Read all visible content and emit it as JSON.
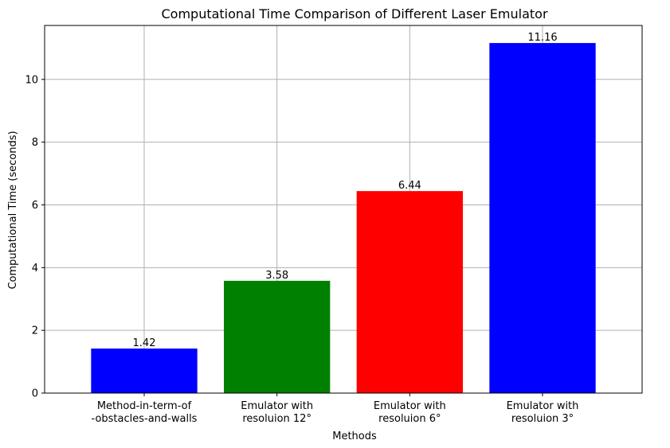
{
  "chart_data": {
    "type": "bar",
    "title": "Computational Time Comparison of Different Laser Emulator",
    "xlabel": "Methods",
    "ylabel": "Computational Time (seconds)",
    "categories": [
      [
        "Method-in-term-of",
        "-obstacles-and-walls"
      ],
      [
        "Emulator with",
        "resoluion 12°"
      ],
      [
        "Emulator with",
        "resoluion 6°"
      ],
      [
        "Emulator with",
        "resoluion 3°"
      ]
    ],
    "values": [
      1.42,
      3.58,
      6.44,
      11.16
    ],
    "value_labels": [
      "1.42",
      "3.58",
      "6.44",
      "11.16"
    ],
    "colors": [
      "#0000ff",
      "#008000",
      "#ff0000",
      "#0000ff"
    ],
    "ylim": [
      0,
      11.72
    ],
    "yticks": [
      0,
      2,
      4,
      6,
      8,
      10
    ],
    "grid": true
  }
}
